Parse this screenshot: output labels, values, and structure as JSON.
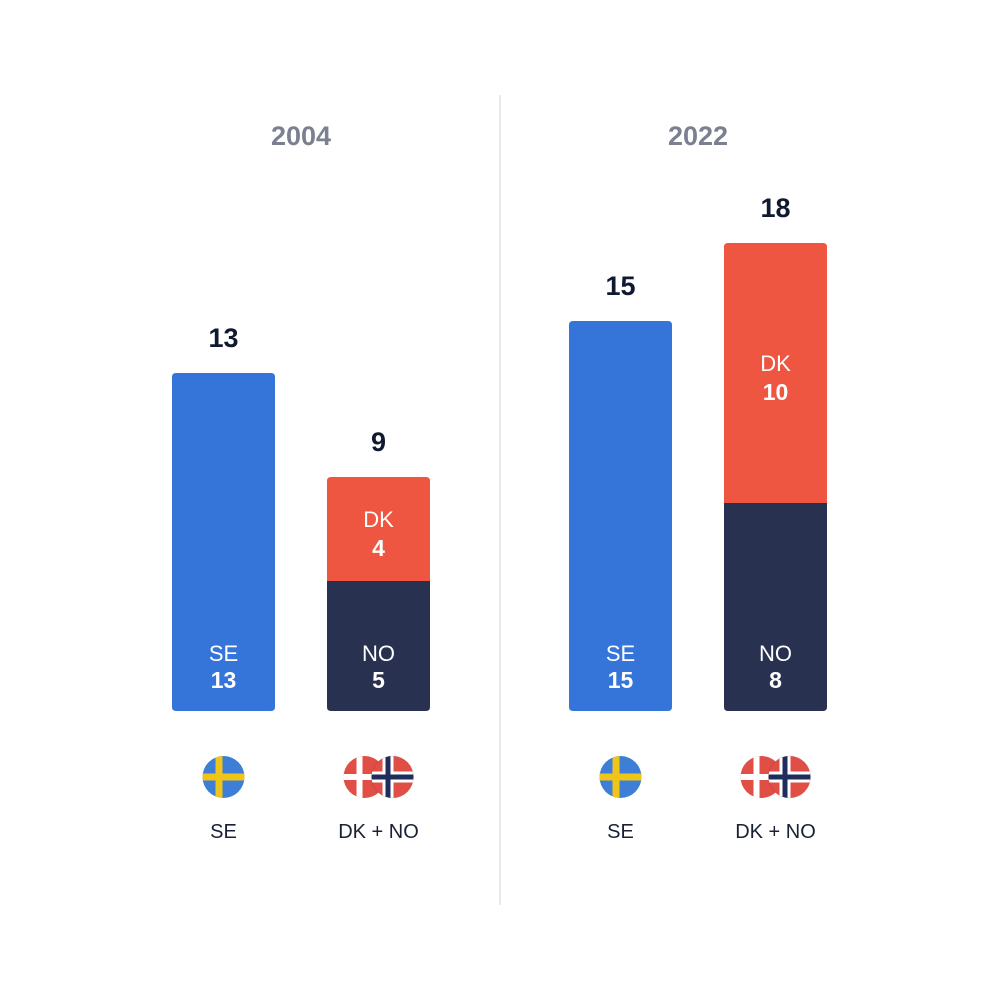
{
  "colors": {
    "se": "#3575d9",
    "dk": "#ef5641",
    "no": "#28314f",
    "title": "#7a8090",
    "total": "#0f1930",
    "divider": "#e1e3e8"
  },
  "chart_data": [
    {
      "type": "bar",
      "stacked": true,
      "title": "2004",
      "categories": [
        "SE",
        "DK + NO"
      ],
      "bars": [
        {
          "category": "SE",
          "flags": [
            "sweden-flag-icon"
          ],
          "total": 13,
          "segments": [
            {
              "name": "SE",
              "value": 13,
              "color": "#3575d9"
            }
          ]
        },
        {
          "category": "DK + NO",
          "flags": [
            "denmark-flag-icon",
            "norway-flag-icon"
          ],
          "total": 9,
          "segments": [
            {
              "name": "NO",
              "value": 5,
              "color": "#28314f"
            },
            {
              "name": "DK",
              "value": 4,
              "color": "#ef5641"
            }
          ]
        }
      ],
      "ylim": [
        0,
        18
      ],
      "grid": false
    },
    {
      "type": "bar",
      "stacked": true,
      "title": "2022",
      "categories": [
        "SE",
        "DK + NO"
      ],
      "bars": [
        {
          "category": "SE",
          "flags": [
            "sweden-flag-icon"
          ],
          "total": 15,
          "segments": [
            {
              "name": "SE",
              "value": 15,
              "color": "#3575d9"
            }
          ]
        },
        {
          "category": "DK + NO",
          "flags": [
            "denmark-flag-icon",
            "norway-flag-icon"
          ],
          "total": 18,
          "segments": [
            {
              "name": "NO",
              "value": 8,
              "color": "#28314f"
            },
            {
              "name": "DK",
              "value": 10,
              "color": "#ef5641"
            }
          ]
        }
      ],
      "ylim": [
        0,
        18
      ],
      "grid": false
    }
  ]
}
